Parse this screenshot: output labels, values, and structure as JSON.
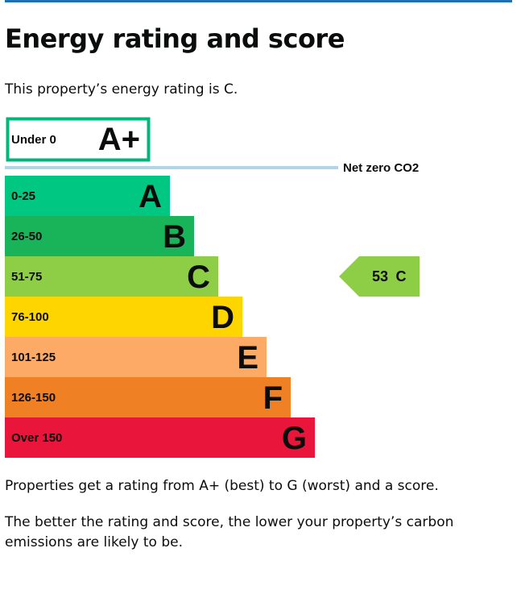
{
  "page": {
    "title": "Energy rating and score",
    "intro": "This property’s energy rating is C.",
    "explanation": "Properties get a rating from A+ (best) to G (worst) and a score.",
    "note": "The better the rating and score, the lower your property’s carbon emissions are likely to be."
  },
  "chart_data": {
    "type": "bar",
    "orientation": "horizontal",
    "net_zero_label": "Net zero CO2",
    "bands": [
      {
        "range": "Under 0",
        "letter": "A+",
        "color": "#ffffff",
        "border": "#00b67a",
        "text_color": "#0b0c0c"
      },
      {
        "range": "0-25",
        "letter": "A",
        "color": "#00c781",
        "text_color": "#0b0c0c"
      },
      {
        "range": "26-50",
        "letter": "B",
        "color": "#19b459",
        "text_color": "#0b0c0c"
      },
      {
        "range": "51-75",
        "letter": "C",
        "color": "#8dce46",
        "text_color": "#0b0c0c"
      },
      {
        "range": "76-100",
        "letter": "D",
        "color": "#ffd500",
        "text_color": "#0b0c0c"
      },
      {
        "range": "101-125",
        "letter": "E",
        "color": "#fcaa65",
        "text_color": "#0b0c0c"
      },
      {
        "range": "126-150",
        "letter": "F",
        "color": "#ef8023",
        "text_color": "#0b0c0c"
      },
      {
        "range": "Over 150",
        "letter": "G",
        "color": "#e9153b",
        "text_color": "#0b0c0c"
      }
    ],
    "current": {
      "score": "53",
      "letter": "C",
      "band_index": 3,
      "color": "#8dce46"
    }
  },
  "colors": {
    "accent": "#1d70b8",
    "net_zero_line": "#b1d5e8"
  }
}
